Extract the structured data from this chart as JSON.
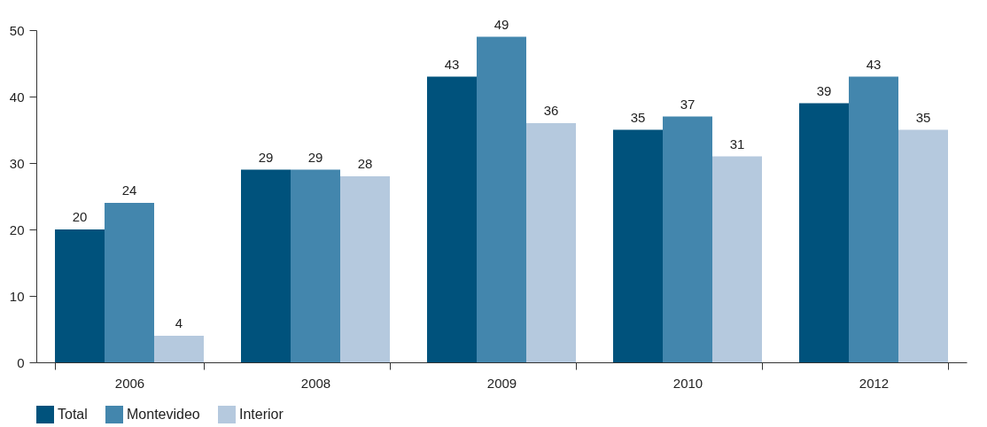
{
  "chart_data": {
    "type": "bar",
    "categories": [
      "2006",
      "2008",
      "2009",
      "2010",
      "2012"
    ],
    "series": [
      {
        "name": "Total",
        "color": "#00527c",
        "values": [
          20,
          29,
          43,
          35,
          39
        ]
      },
      {
        "name": "Montevideo",
        "color": "#4386ad",
        "values": [
          24,
          29,
          49,
          37,
          43
        ]
      },
      {
        "name": "Interior",
        "color": "#b5c9de",
        "values": [
          4,
          28,
          36,
          31,
          35
        ]
      }
    ],
    "ylim": [
      0,
      50
    ],
    "yticks": [
      0,
      10,
      20,
      30,
      40,
      50
    ],
    "grid": false,
    "legend": "bottom",
    "data_labels": true
  }
}
